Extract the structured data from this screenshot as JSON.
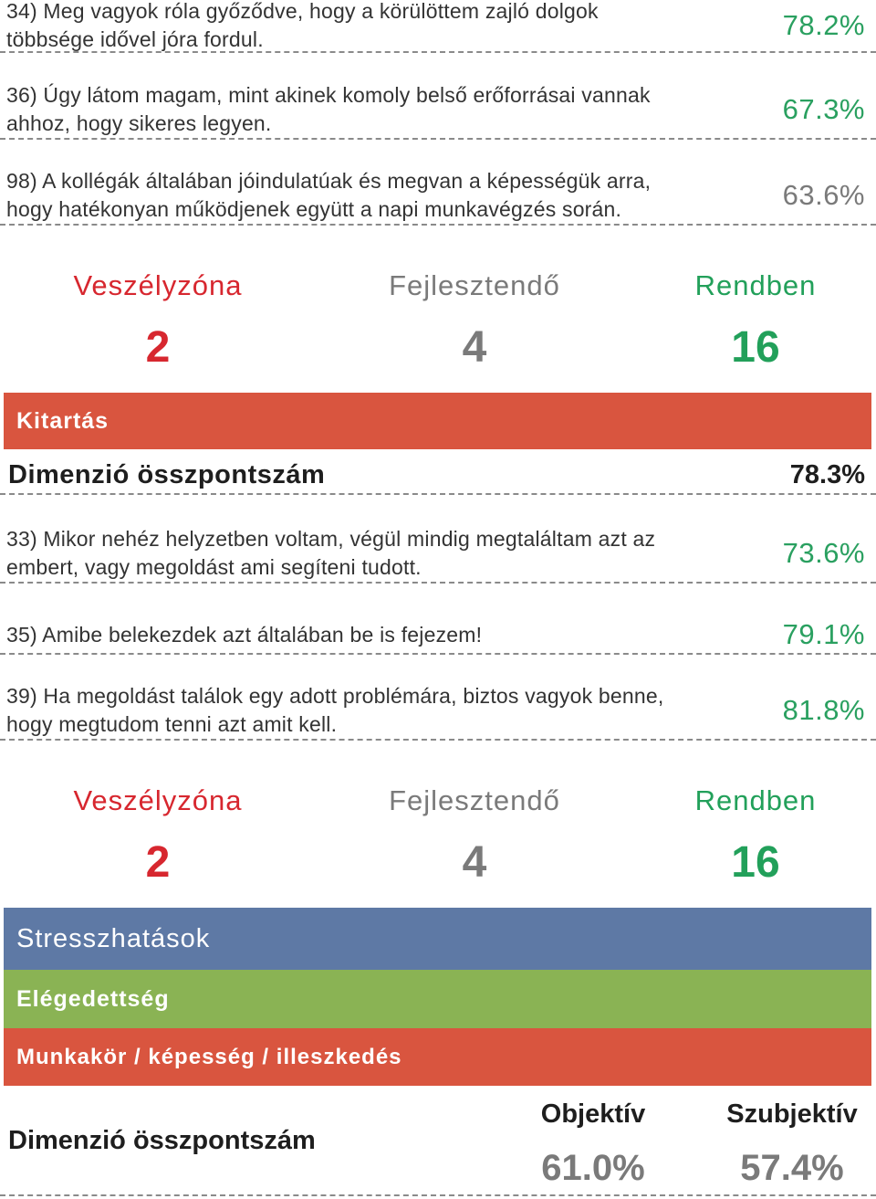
{
  "questions_top": [
    {
      "text": "34) Meg vagyok róla győződve, hogy a körülöttem zajló dolgok többsége idővel jóra fordul.",
      "pct": "78.2%"
    },
    {
      "text": "36) Úgy látom magam, mint akinek komoly belső erőforrásai vannak ahhoz, hogy sikeres legyen.",
      "pct": "67.3%"
    },
    {
      "text": "98) A kollégák általában jóindulatúak és megvan a képességük arra, hogy hatékonyan működjenek együtt a napi munkavégzés során.",
      "pct": "63.6%"
    }
  ],
  "stats_1": {
    "danger_label": "Veszélyzóna",
    "danger_value": "2",
    "develop_label": "Fejlesztendő",
    "develop_value": "4",
    "ok_label": "Rendben",
    "ok_value": "16"
  },
  "section_kitartas": {
    "title": "Kitartás",
    "dim_label": "Dimenzió összpontszám",
    "dim_value": "78.3%",
    "questions": [
      {
        "text": "33) Mikor nehéz helyzetben voltam, végül mindig megtaláltam azt az embert, vagy megoldást ami segíteni tudott.",
        "pct": "73.6%"
      },
      {
        "text": "35) Amibe belekezdek azt általában be is fejezem!",
        "pct": "79.1%"
      },
      {
        "text": "39) Ha megoldást találok egy adott problémára, biztos vagyok benne, hogy megtudom tenni azt amit kell.",
        "pct": "81.8%"
      }
    ]
  },
  "stats_2": {
    "danger_label": "Veszélyzóna",
    "danger_value": "2",
    "develop_label": "Fejlesztendő",
    "develop_value": "4",
    "ok_label": "Rendben",
    "ok_value": "16"
  },
  "bars": {
    "stress": "Stresszhatások",
    "satisfaction": "Elégedettség",
    "job_fit": "Munkakör / képesség / illeszkedés"
  },
  "final": {
    "dim_label": "Dimenzió összpontszám",
    "objective_label": "Objektív",
    "objective_value": "61.0%",
    "subjective_label": "Szubjektív",
    "subjective_value": "57.4%"
  },
  "colors": {
    "red_bar": "#d9553f",
    "blue_bar": "#5e79a5",
    "green_bar": "#8ab354",
    "pct_green": "#2aa060",
    "danger": "#d7272f",
    "grey": "#7a7a7a"
  }
}
